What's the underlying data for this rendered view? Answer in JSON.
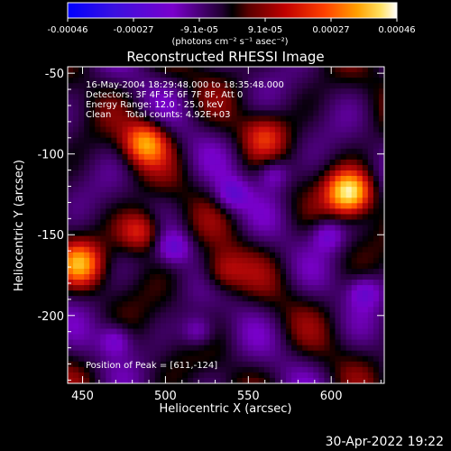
{
  "colorbar": {
    "ticks": [
      "-0.00046",
      "-0.00027",
      "-9.1e-05",
      "9.1e-05",
      "0.00027",
      "0.00046"
    ],
    "units": "(photons cm⁻² s⁻¹ asec⁻²)"
  },
  "annotations": {
    "line1": "16-May-2004 18:29:48.000 to 18:35:48.000",
    "line2": "Detectors: 3F 4F 5F 6F 7F 8F, Att 0",
    "line3": "Energy Range: 12.0 - 25.0 keV",
    "line4": "Clean     Total counts: 4.92E+03",
    "peak": "Position of Peak = [611,-124]"
  },
  "timestamp": "30-Apr-2022 19:22",
  "chart_data": {
    "type": "heatmap",
    "title": "Reconstructed RHESSI Image",
    "xlabel": "Heliocentric X (arcsec)",
    "ylabel": "Heliocentric Y (arcsec)",
    "xlim": [
      441,
      632
    ],
    "ylim": [
      -242,
      -46
    ],
    "xticks": [
      450,
      500,
      550,
      600
    ],
    "yticks": [
      -200,
      -150,
      -100,
      -50
    ],
    "xtick_labels": [
      "450",
      "500",
      "550",
      "600"
    ],
    "ytick_labels": [
      "-200",
      "-150",
      "-100",
      "-50"
    ],
    "colorbar_range": [
      -0.00046,
      0.00046
    ],
    "colormap": [
      "#0000ff",
      "#5b1fd0",
      "#7a00cc",
      "#000000",
      "#7a0000",
      "#d01010",
      "#ff6000",
      "#ffb000",
      "#ffff80",
      "#ffffff"
    ],
    "peak": [
      611,
      -124
    ],
    "bright_sources": [
      {
        "x": 611,
        "y": -124,
        "value": 0.00046
      },
      {
        "x": 488,
        "y": -93,
        "value": 0.00032
      },
      {
        "x": 448,
        "y": -168,
        "value": 0.0003
      },
      {
        "x": 485,
        "y": -148,
        "value": 0.00024
      },
      {
        "x": 534,
        "y": -173,
        "value": 0.00018
      },
      {
        "x": 560,
        "y": -88,
        "value": 0.00016
      }
    ]
  }
}
